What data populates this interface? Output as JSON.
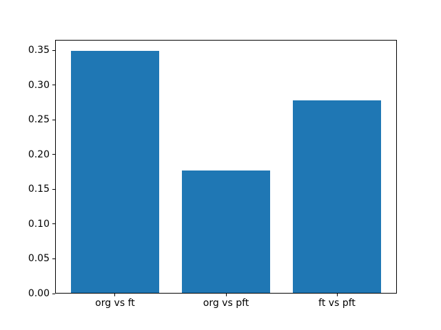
{
  "chart_data": {
    "type": "bar",
    "title": "",
    "xlabel": "",
    "ylabel": "",
    "categories": [
      "org vs ft",
      "org vs pft",
      "ft vs pft"
    ],
    "values": [
      0.348,
      0.176,
      0.277
    ],
    "x_positions": [
      0,
      1,
      2
    ],
    "bar_width": 0.8,
    "bar_color": "#1f77b4",
    "background_color": "#ffffff",
    "spine_color": "#000000",
    "text_color": "#000000",
    "xlim": [
      -0.54,
      2.54
    ],
    "ylim": [
      0,
      0.365
    ],
    "ytick_labels": [
      "0.00",
      "0.05",
      "0.10",
      "0.15",
      "0.20",
      "0.25",
      "0.30",
      "0.35"
    ],
    "ytick_values": [
      0.0,
      0.05,
      0.1,
      0.15,
      0.2,
      0.25,
      0.3,
      0.35
    ],
    "grid": false,
    "legend": "none"
  }
}
